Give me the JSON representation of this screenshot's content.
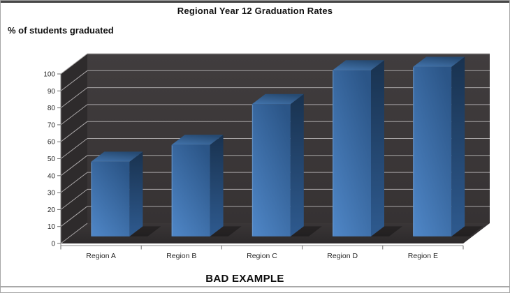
{
  "frame": {
    "top_strip_color": "#474747",
    "border_color": "#a6a6a6",
    "bottom_line_color": "#a9a9a9",
    "background": "#ffffff"
  },
  "chart_data": {
    "type": "bar",
    "variant": "3d-column",
    "title": "Regional Year 12 Graduation Rates",
    "ylabel": "% of students graduated",
    "caption": "BAD EXAMPLE",
    "categories": [
      "Region A",
      "Region B",
      "Region C",
      "Region D",
      "Region E"
    ],
    "values": [
      44,
      54,
      78,
      98,
      100
    ],
    "ylim": [
      0,
      100
    ],
    "ytick_step": 10,
    "yticks": [
      0,
      10,
      20,
      30,
      40,
      50,
      60,
      70,
      80,
      90,
      100
    ],
    "grid": true,
    "legend_position": "none",
    "colors": {
      "bar_front_top": "#2b5587",
      "bar_front_bottom": "#4e85c5",
      "bar_side_top": "#19324f",
      "bar_side_bottom": "#2e5a8f",
      "bar_top_front": "#4273ab",
      "bar_top_back": "#264a72",
      "bar_edge_highlight": "#7aa7d8",
      "wall_back": "#3b3738",
      "wall_left": "#2e2b2c",
      "floor": "#322f30",
      "gridline": "#a8a5a6",
      "axis": "#8a8a8a",
      "tick": "#6e6e6e",
      "text": "#262626",
      "shadow": "rgba(0,0,0,0.30)"
    }
  }
}
